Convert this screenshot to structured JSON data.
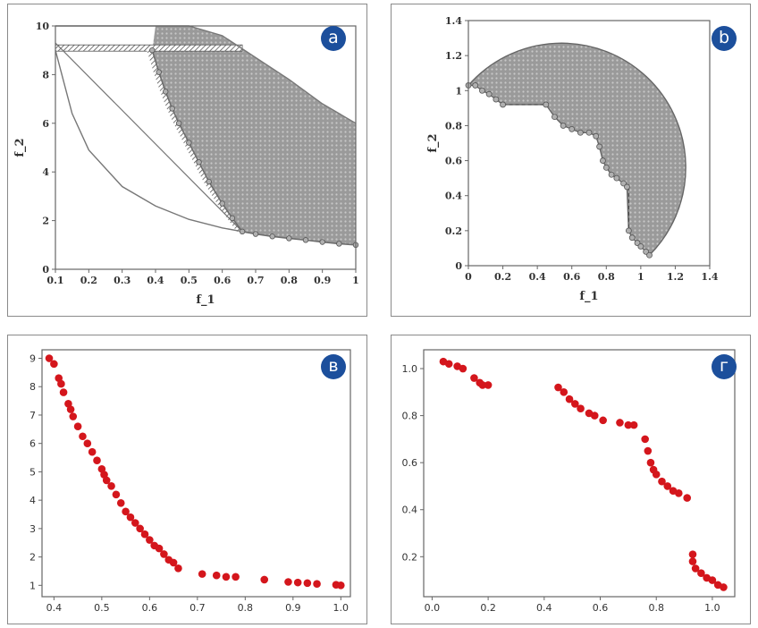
{
  "panels": [
    {
      "badge": "a"
    },
    {
      "badge": "b"
    },
    {
      "badge": "в"
    },
    {
      "badge": "г"
    }
  ],
  "chart_data": [
    {
      "type": "area",
      "xlabel": "f_1",
      "ylabel": "f_2",
      "xlim": [
        0.1,
        1.0
      ],
      "ylim": [
        0,
        10
      ],
      "xticks": [
        "0.1",
        "0.2",
        "0.3",
        "0.4",
        "0.5",
        "0.6",
        "0.7",
        "0.8",
        "0.9",
        "1"
      ],
      "yticks": [
        "0",
        "2",
        "4",
        "6",
        "8",
        "10"
      ],
      "grid": false,
      "colors": {
        "region": "#8c8c8c",
        "front": "#6d6d6d",
        "hatch": "#555555",
        "curve": "#777777"
      },
      "feasible_upper_curve": {
        "x": [
          0.1,
          0.2,
          0.3,
          0.4,
          0.5,
          0.6,
          0.7,
          0.8,
          0.9,
          1.0
        ],
        "y": [
          10.0,
          10.0,
          10.0,
          10.0,
          10.0,
          9.6,
          8.7,
          7.8,
          6.8,
          6.0
        ]
      },
      "inner_boundary_curve": {
        "x": [
          0.1,
          0.15,
          0.2,
          0.3,
          0.4,
          0.5,
          0.6,
          0.66
        ],
        "y": [
          9.0,
          6.4,
          4.9,
          3.4,
          2.6,
          2.05,
          1.7,
          1.55
        ]
      },
      "hatched_segment": {
        "x1": 0.1,
        "x2": 0.66,
        "y": 9.0
      },
      "pareto_front": {
        "x": [
          0.39,
          0.41,
          0.43,
          0.45,
          0.47,
          0.5,
          0.53,
          0.56,
          0.6,
          0.63,
          0.66,
          0.7,
          0.75,
          0.8,
          0.85,
          0.9,
          0.95,
          1.0
        ],
        "y": [
          9.0,
          8.1,
          7.3,
          6.6,
          6.0,
          5.2,
          4.4,
          3.6,
          2.7,
          2.1,
          1.55,
          1.45,
          1.35,
          1.27,
          1.2,
          1.12,
          1.05,
          1.0
        ]
      }
    },
    {
      "type": "area",
      "xlabel": "f_1",
      "ylabel": "f_2",
      "xlim": [
        0,
        1.4
      ],
      "ylim": [
        0,
        1.4
      ],
      "xticks": [
        "0",
        "0.2",
        "0.4",
        "0.6",
        "0.8",
        "1",
        "1.2",
        "1.4"
      ],
      "yticks": [
        "0",
        "0.2",
        "0.4",
        "0.6",
        "0.8",
        "1",
        "1.2",
        "1.4"
      ],
      "grid": false,
      "colors": {
        "region": "#8c8c8c",
        "front": "#6d6d6d",
        "dashed": "#444444"
      },
      "outer_arc": {
        "center": [
          0.5,
          0.5
        ],
        "radius": 0.72,
        "from_deg": 128,
        "to_deg": -42
      },
      "pareto_front": {
        "x": [
          0.0,
          0.04,
          0.08,
          0.12,
          0.16,
          0.2,
          0.45,
          0.5,
          0.55,
          0.6,
          0.65,
          0.7,
          0.74,
          0.76,
          0.78,
          0.8,
          0.83,
          0.86,
          0.9,
          0.92,
          0.93,
          0.95,
          0.98,
          1.0,
          1.03,
          1.05
        ],
        "y": [
          1.03,
          1.03,
          1.0,
          0.98,
          0.95,
          0.92,
          0.92,
          0.85,
          0.8,
          0.78,
          0.76,
          0.76,
          0.74,
          0.68,
          0.6,
          0.56,
          0.52,
          0.5,
          0.47,
          0.45,
          0.2,
          0.16,
          0.13,
          0.11,
          0.08,
          0.06
        ]
      },
      "dashed_lines": [
        {
          "x": [
            0.2,
            0.45
          ],
          "y": [
            0.92,
            0.92
          ]
        },
        {
          "x": [
            0.93,
            0.93
          ],
          "y": [
            0.45,
            0.2
          ]
        }
      ]
    },
    {
      "type": "scatter",
      "xlim": [
        0.375,
        1.02
      ],
      "ylim": [
        0.6,
        9.3
      ],
      "xticks": [
        "0.4",
        "0.5",
        "0.6",
        "0.7",
        "0.8",
        "0.9",
        "1.0"
      ],
      "yticks": [
        "1",
        "2",
        "3",
        "4",
        "5",
        "6",
        "7",
        "8",
        "9"
      ],
      "grid": false,
      "colors": {
        "marker": "#d4161c"
      },
      "x": [
        0.39,
        0.4,
        0.41,
        0.415,
        0.42,
        0.43,
        0.435,
        0.44,
        0.45,
        0.46,
        0.47,
        0.48,
        0.49,
        0.5,
        0.505,
        0.51,
        0.52,
        0.53,
        0.54,
        0.55,
        0.56,
        0.57,
        0.58,
        0.59,
        0.6,
        0.61,
        0.62,
        0.63,
        0.64,
        0.65,
        0.66,
        0.71,
        0.74,
        0.76,
        0.78,
        0.84,
        0.89,
        0.91,
        0.93,
        0.95,
        0.99,
        1.0
      ],
      "y": [
        9.0,
        8.8,
        8.3,
        8.1,
        7.8,
        7.4,
        7.2,
        6.95,
        6.6,
        6.25,
        6.0,
        5.7,
        5.4,
        5.1,
        4.9,
        4.7,
        4.5,
        4.2,
        3.9,
        3.6,
        3.4,
        3.2,
        3.0,
        2.8,
        2.6,
        2.4,
        2.3,
        2.1,
        1.9,
        1.8,
        1.6,
        1.4,
        1.35,
        1.3,
        1.3,
        1.2,
        1.12,
        1.1,
        1.08,
        1.05,
        1.02,
        1.0
      ]
    },
    {
      "type": "scatter",
      "xlim": [
        -0.03,
        1.08
      ],
      "ylim": [
        0.03,
        1.08
      ],
      "xticks": [
        "0.0",
        "0.2",
        "0.4",
        "0.6",
        "0.8",
        "1.0"
      ],
      "yticks": [
        "0.2",
        "0.4",
        "0.6",
        "0.8",
        "1.0"
      ],
      "grid": false,
      "colors": {
        "marker": "#d4161c"
      },
      "x": [
        0.04,
        0.06,
        0.09,
        0.11,
        0.15,
        0.17,
        0.18,
        0.2,
        0.45,
        0.47,
        0.49,
        0.51,
        0.53,
        0.56,
        0.58,
        0.61,
        0.67,
        0.7,
        0.72,
        0.76,
        0.77,
        0.78,
        0.79,
        0.8,
        0.82,
        0.84,
        0.86,
        0.88,
        0.91,
        0.93,
        0.93,
        0.94,
        0.96,
        0.98,
        1.0,
        1.02,
        1.04
      ],
      "y": [
        1.03,
        1.02,
        1.01,
        1.0,
        0.96,
        0.94,
        0.93,
        0.93,
        0.92,
        0.9,
        0.87,
        0.85,
        0.83,
        0.81,
        0.8,
        0.78,
        0.77,
        0.76,
        0.76,
        0.7,
        0.65,
        0.6,
        0.57,
        0.55,
        0.52,
        0.5,
        0.48,
        0.47,
        0.45,
        0.21,
        0.18,
        0.15,
        0.13,
        0.11,
        0.1,
        0.08,
        0.07
      ]
    }
  ]
}
